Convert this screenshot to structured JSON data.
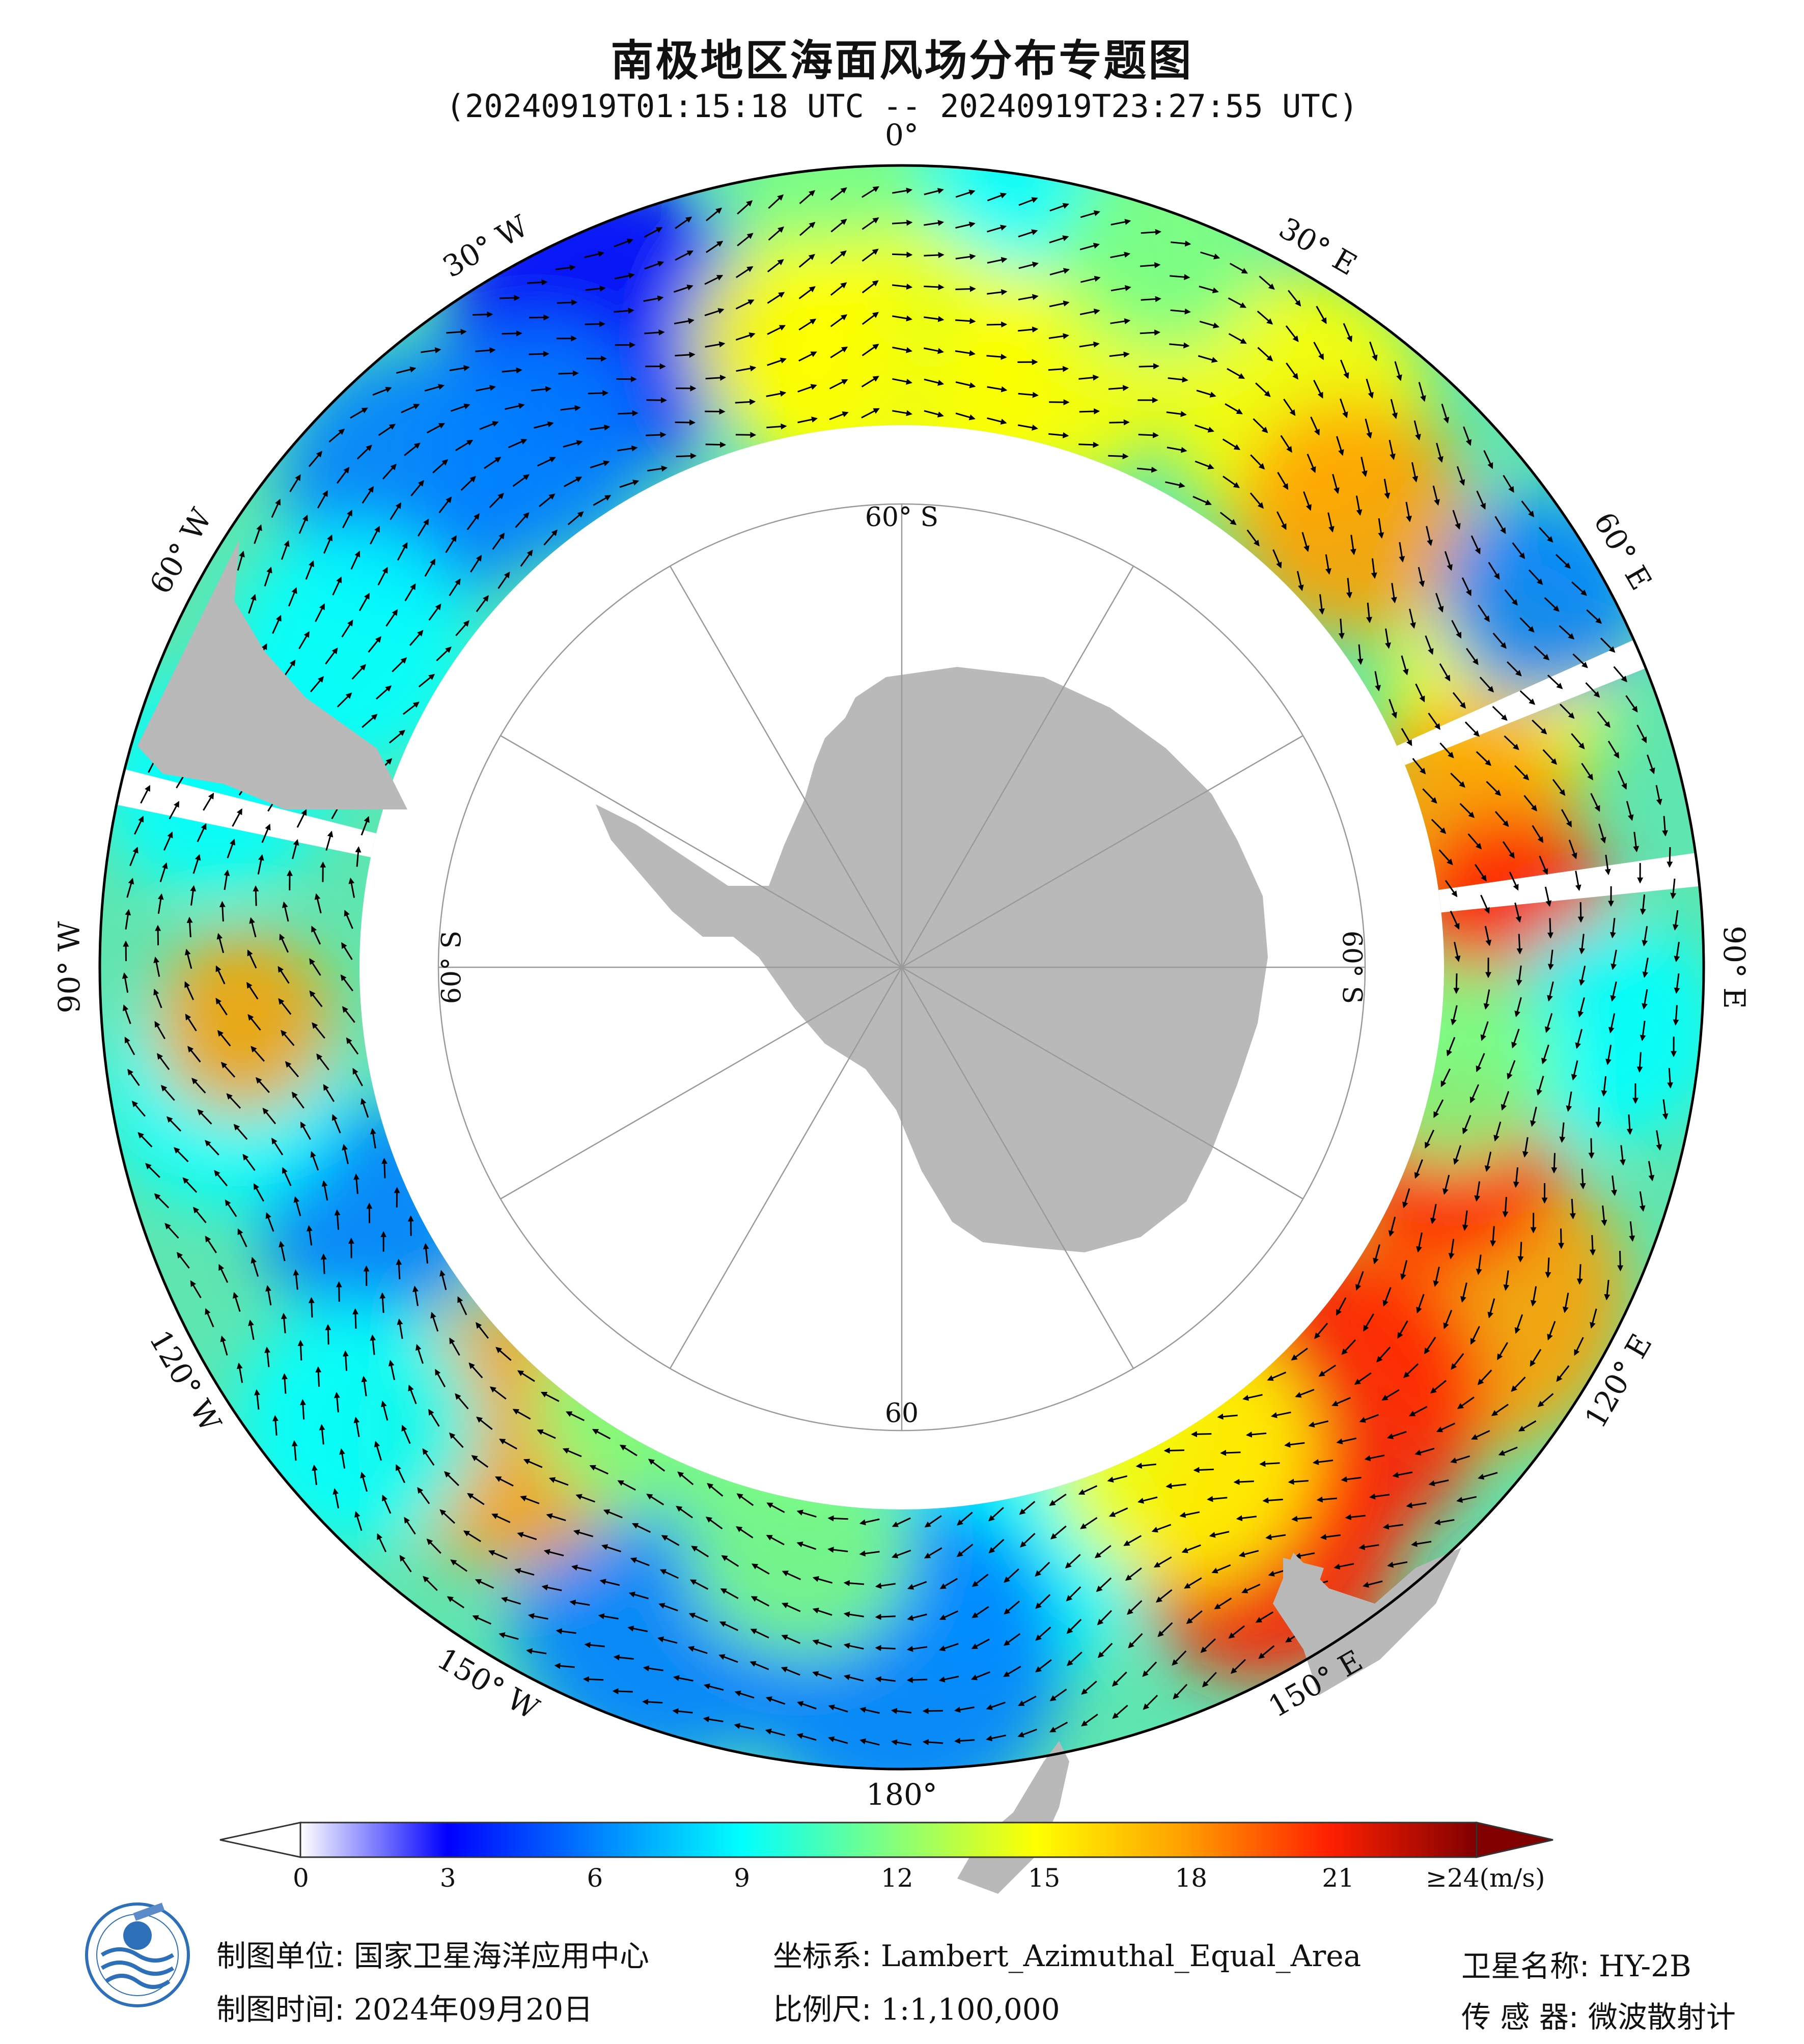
{
  "title": "南极地区海面风场分布专题图",
  "subtitle": "(20240919T01:15:18 UTC -- 20240919T23:27:55 UTC)",
  "map": {
    "projection_center": "South Pole",
    "longitude_labels": [
      {
        "text": "0°",
        "lon": 0
      },
      {
        "text": "30° E",
        "lon": 30
      },
      {
        "text": "60° E",
        "lon": 60
      },
      {
        "text": "90° E",
        "lon": 90
      },
      {
        "text": "120° E",
        "lon": 120
      },
      {
        "text": "150° E",
        "lon": 150
      },
      {
        "text": "180°",
        "lon": 180
      },
      {
        "text": "150° W",
        "lon": -150
      },
      {
        "text": "120° W",
        "lon": -120
      },
      {
        "text": "90° W",
        "lon": -90
      },
      {
        "text": "60° W",
        "lon": -60
      },
      {
        "text": "30° W",
        "lon": -30
      }
    ],
    "latitude_labels": [
      {
        "text": "60° S",
        "lon": 0
      },
      {
        "text": "60° S",
        "lon": 90
      },
      {
        "text": "60° S",
        "lon": -90
      },
      {
        "text": "60",
        "lon": 180
      }
    ],
    "colors": {
      "land": "#b9b9b9",
      "grid": "#aaaaaa",
      "arrow": "#000000",
      "border": "#000000"
    }
  },
  "colorbar": {
    "min": 0,
    "max": 24,
    "unit": "m/s",
    "ticks": [
      "0",
      "3",
      "6",
      "9",
      "12",
      "15",
      "18",
      "21",
      "≥24(m/s)"
    ],
    "colors": [
      "#ffffff",
      "#0000ff",
      "#0080ff",
      "#00ffff",
      "#80ff80",
      "#ffff00",
      "#ffa000",
      "#ff2000",
      "#800000"
    ],
    "over_color": "#800000"
  },
  "footer": {
    "producer_label": "制图单位:",
    "producer_value": "国家卫星海洋应用中心",
    "date_label": "制图时间:",
    "date_value": "2024年09月20日",
    "crs_label": "坐标系:",
    "crs_value": "Lambert_Azimuthal_Equal_Area",
    "scale_label": "比例尺:",
    "scale_value": "1:1,100,000",
    "satellite_label": "卫星名称:",
    "satellite_value": "HY-2B",
    "sensor_label": "传 感 器:",
    "sensor_value": "微波散射计",
    "logo_icon": "nsoas-logo"
  }
}
